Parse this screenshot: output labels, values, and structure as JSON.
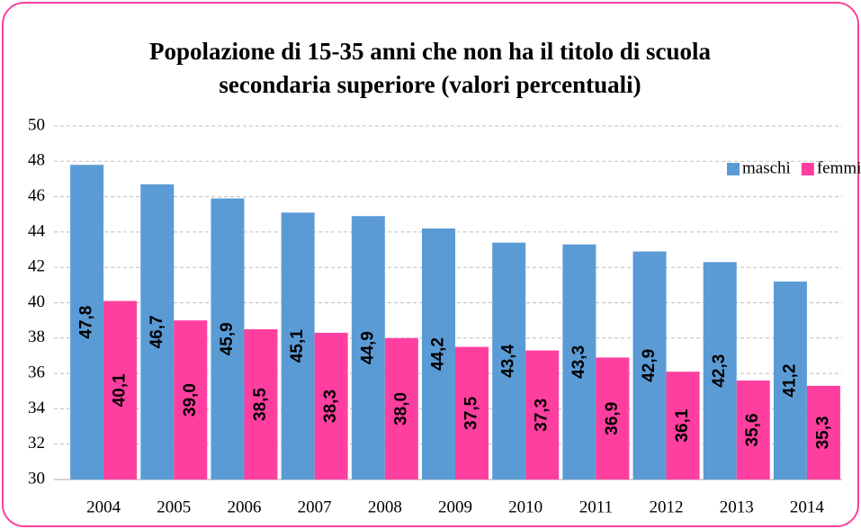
{
  "chart_data": {
    "type": "bar",
    "title": [
      "Popolazione di 15-35 anni che non ha il titolo di scuola",
      "secondaria superiore (valori percentuali)"
    ],
    "categories": [
      "2004",
      "2005",
      "2006",
      "2007",
      "2008",
      "2009",
      "2010",
      "2011",
      "2012",
      "2013",
      "2014"
    ],
    "series": [
      {
        "name": "maschi",
        "color": "#5b9bd5",
        "values": [
          47.8,
          46.7,
          45.9,
          45.1,
          44.9,
          44.2,
          43.4,
          43.3,
          42.9,
          42.3,
          41.2
        ],
        "value_labels": [
          "47,8",
          "46,7",
          "45,9",
          "45,1",
          "44,9",
          "44,2",
          "43,4",
          "43,3",
          "42,9",
          "42,3",
          "41,2"
        ]
      },
      {
        "name": "femmine",
        "color": "#ff3f9f",
        "values": [
          40.1,
          39.0,
          38.5,
          38.3,
          38.0,
          37.5,
          37.3,
          36.9,
          36.1,
          35.6,
          35.3
        ],
        "value_labels": [
          "40,1",
          "39,0",
          "38,5",
          "38,3",
          "38,0",
          "37,5",
          "37,3",
          "36,9",
          "36,1",
          "35,6",
          "35,3"
        ]
      }
    ],
    "ylim": [
      30,
      50
    ],
    "yticks": [
      30,
      32,
      34,
      36,
      38,
      40,
      42,
      44,
      46,
      48,
      50
    ],
    "grid": true,
    "legend": "top-right"
  }
}
